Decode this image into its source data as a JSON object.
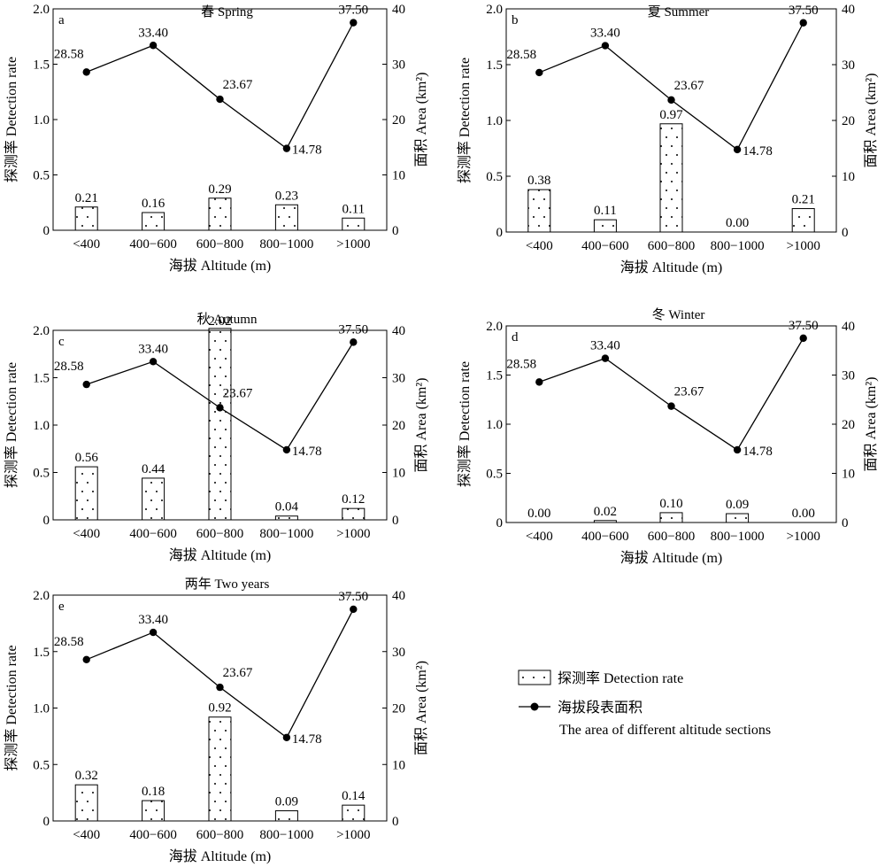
{
  "charts": [
    {
      "panel": "a",
      "title": "春 Spring",
      "xlabel": "海拔 Altitude (m)",
      "ylabel_left": "探测率 Detection rate",
      "ylabel_right": "面积 Area (km²)",
      "categories": [
        "<400",
        "400−600",
        "600−800",
        "800−1000",
        ">1000"
      ],
      "left_ticks": [
        "2.0",
        "1.5",
        "1.0",
        "0.5",
        "0"
      ],
      "right_ticks": [
        "40",
        "30",
        "20",
        "10",
        "0"
      ],
      "detection_labels": [
        "0.21",
        "0.16",
        "0.29",
        "0.23",
        "0.11"
      ],
      "area_labels": [
        "28.58",
        "33.40",
        "23.67",
        "14.78",
        "37.50"
      ]
    },
    {
      "panel": "b",
      "title": "夏 Summer",
      "xlabel": "海拔 Altitude (m)",
      "ylabel_left": "探测率 Detection rate",
      "ylabel_right": "面积 Area (km²)",
      "categories": [
        "<400",
        "400−600",
        "600−800",
        "800−1000",
        ">1000"
      ],
      "left_ticks": [
        "2.0",
        "1.5",
        "1.0",
        "0.5",
        "0"
      ],
      "right_ticks": [
        "40",
        "30",
        "20",
        "10",
        "0"
      ],
      "detection_labels": [
        "0.38",
        "0.11",
        "0.97",
        "0.00",
        "0.21"
      ],
      "area_labels": [
        "28.58",
        "33.40",
        "23.67",
        "14.78",
        "37.50"
      ]
    },
    {
      "panel": "c",
      "title": "秋 Autumn",
      "xlabel": "海拔 Altitude (m)",
      "ylabel_left": "探测率 Detection rate",
      "ylabel_right": "面积 Area (km²)",
      "categories": [
        "<400",
        "400−600",
        "600−800",
        "800−1000",
        ">1000"
      ],
      "left_ticks": [
        "2.0",
        "1.5",
        "1.0",
        "0.5",
        "0"
      ],
      "right_ticks": [
        "40",
        "30",
        "20",
        "10",
        "0"
      ],
      "detection_labels": [
        "0.56",
        "0.44",
        "2.02",
        "0.04",
        "0.12"
      ],
      "area_labels": [
        "28.58",
        "33.40",
        "23.67",
        "14.78",
        "37.50"
      ]
    },
    {
      "panel": "d",
      "title": "冬 Winter",
      "xlabel": "海拔 Altitude (m)",
      "ylabel_left": "探测率 Detection rate",
      "ylabel_right": "面积 Area (km²)",
      "categories": [
        "<400",
        "400−600",
        "600−800",
        "800−1000",
        ">1000"
      ],
      "left_ticks": [
        "2.0",
        "1.5",
        "1.0",
        "0.5",
        "0"
      ],
      "right_ticks": [
        "40",
        "30",
        "20",
        "10",
        "0"
      ],
      "detection_labels": [
        "0.00",
        "0.02",
        "0.10",
        "0.09",
        "0.00"
      ],
      "area_labels": [
        "28.58",
        "33.40",
        "23.67",
        "14.78",
        "37.50"
      ]
    },
    {
      "panel": "e",
      "title": "两年 Two years",
      "xlabel": "海拔 Altitude (m)",
      "ylabel_left": "探测率 Detection rate",
      "ylabel_right": "面积 Area (km²)",
      "categories": [
        "<400",
        "400−600",
        "600−800",
        "800−1000",
        ">1000"
      ],
      "left_ticks": [
        "2.0",
        "1.5",
        "1.0",
        "0.5",
        "0"
      ],
      "right_ticks": [
        "40",
        "30",
        "20",
        "10",
        "0"
      ],
      "detection_labels": [
        "0.32",
        "0.18",
        "0.92",
        "0.09",
        "0.14"
      ],
      "area_labels": [
        "28.58",
        "33.40",
        "23.67",
        "14.78",
        "37.50"
      ]
    }
  ],
  "legend": {
    "bar_label": "探测率 Detection rate",
    "line_label_1": "海拔段表面积",
    "line_label_2": "The area of different altitude sections"
  },
  "chart_data": [
    {
      "type": "bar",
      "panel": "a",
      "title": "春 Spring",
      "categories": [
        "<400",
        "400−600",
        "600−800",
        "800−1000",
        ">1000"
      ],
      "xlabel": "海拔 Altitude (m)",
      "series": [
        {
          "name": "探测率 Detection rate",
          "type": "bar",
          "axis": "left",
          "values": [
            0.21,
            0.16,
            0.29,
            0.23,
            0.11
          ]
        },
        {
          "name": "海拔段表面积 The area of different altitude sections",
          "type": "line",
          "axis": "right",
          "values": [
            28.58,
            33.4,
            23.67,
            14.78,
            37.5
          ]
        }
      ],
      "ylabel_left": "探测率 Detection rate",
      "ylim_left": [
        0,
        2.0
      ],
      "ylabel_right": "面积 Area (km²)",
      "ylim_right": [
        0,
        40
      ],
      "grid": false,
      "legend": "shared, lower-right"
    },
    {
      "type": "bar",
      "panel": "b",
      "title": "夏 Summer",
      "categories": [
        "<400",
        "400−600",
        "600−800",
        "800−1000",
        ">1000"
      ],
      "xlabel": "海拔 Altitude (m)",
      "series": [
        {
          "name": "探测率 Detection rate",
          "type": "bar",
          "axis": "left",
          "values": [
            0.38,
            0.11,
            0.97,
            0.0,
            0.21
          ]
        },
        {
          "name": "海拔段表面积 The area of different altitude sections",
          "type": "line",
          "axis": "right",
          "values": [
            28.58,
            33.4,
            23.67,
            14.78,
            37.5
          ]
        }
      ],
      "ylabel_left": "探测率 Detection rate",
      "ylim_left": [
        0,
        2.0
      ],
      "ylabel_right": "面积 Area (km²)",
      "ylim_right": [
        0,
        40
      ],
      "grid": false,
      "legend": "shared, lower-right"
    },
    {
      "type": "bar",
      "panel": "c",
      "title": "秋 Autumn",
      "categories": [
        "<400",
        "400−600",
        "600−800",
        "800−1000",
        ">1000"
      ],
      "xlabel": "海拔 Altitude (m)",
      "series": [
        {
          "name": "探测率 Detection rate",
          "type": "bar",
          "axis": "left",
          "values": [
            0.56,
            0.44,
            2.02,
            0.04,
            0.12
          ]
        },
        {
          "name": "海拔段表面积 The area of different altitude sections",
          "type": "line",
          "axis": "right",
          "values": [
            28.58,
            33.4,
            23.67,
            14.78,
            37.5
          ]
        }
      ],
      "ylabel_left": "探测率 Detection rate",
      "ylim_left": [
        0,
        2.0
      ],
      "ylabel_right": "面积 Area (km²)",
      "ylim_right": [
        0,
        40
      ],
      "grid": false,
      "legend": "shared, lower-right"
    },
    {
      "type": "bar",
      "panel": "d",
      "title": "冬 Winter",
      "categories": [
        "<400",
        "400−600",
        "600−800",
        "800−1000",
        ">1000"
      ],
      "xlabel": "海拔 Altitude (m)",
      "series": [
        {
          "name": "探测率 Detection rate",
          "type": "bar",
          "axis": "left",
          "values": [
            0.0,
            0.02,
            0.1,
            0.09,
            0.0
          ]
        },
        {
          "name": "海拔段表面积 The area of different altitude sections",
          "type": "line",
          "axis": "right",
          "values": [
            28.58,
            33.4,
            23.67,
            14.78,
            37.5
          ]
        }
      ],
      "ylabel_left": "探测率 Detection rate",
      "ylim_left": [
        0,
        2.0
      ],
      "ylabel_right": "面积 Area (km²)",
      "ylim_right": [
        0,
        40
      ],
      "grid": false,
      "legend": "shared, lower-right"
    },
    {
      "type": "bar",
      "panel": "e",
      "title": "两年 Two years",
      "categories": [
        "<400",
        "400−600",
        "600−800",
        "800−1000",
        ">1000"
      ],
      "xlabel": "海拔 Altitude (m)",
      "series": [
        {
          "name": "探测率 Detection rate",
          "type": "bar",
          "axis": "left",
          "values": [
            0.32,
            0.18,
            0.92,
            0.09,
            0.14
          ]
        },
        {
          "name": "海拔段表面积 The area of different altitude sections",
          "type": "line",
          "axis": "right",
          "values": [
            28.58,
            33.4,
            23.67,
            14.78,
            37.5
          ]
        }
      ],
      "ylabel_left": "探测率 Detection rate",
      "ylim_left": [
        0,
        2.0
      ],
      "ylabel_right": "面积 Area (km²)",
      "ylim_right": [
        0,
        40
      ],
      "grid": false,
      "legend": "shared, lower-right"
    }
  ]
}
